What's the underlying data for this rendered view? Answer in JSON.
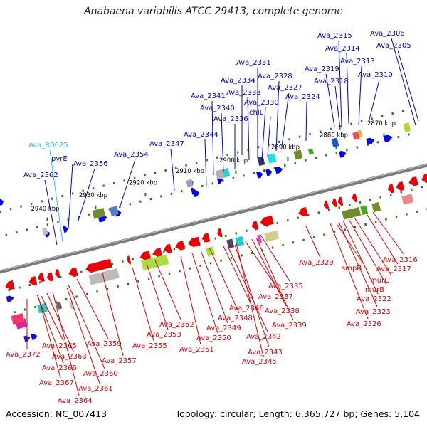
{
  "title": "Anabaena variabilis ATCC 29413, complete genome",
  "footer": {
    "accession": "Accession: NC_007413",
    "stats": "Topology: circular; Length: 6,365,727 bp; Genes: 5,104"
  },
  "colors": {
    "backbone": "#7a7a7a",
    "ticks": "#1f7a1f",
    "forward_label": "#0000cc",
    "reverse_label": "#dd0000",
    "rna_label": "#33bbee"
  },
  "scale_ticks": [
    "2940 kbp",
    "2930 kbp",
    "2920 kbp",
    "2910 kbp",
    "2900 kbp",
    "2890 kbp",
    "2880 kbp",
    "2870 kbp"
  ],
  "top_labels": [
    {
      "text": "Ava_2362",
      "kind": "forward"
    },
    {
      "text": "Ava_R0025",
      "kind": "rna"
    },
    {
      "text": "pyrE",
      "kind": "forward"
    },
    {
      "text": "Ava_2356",
      "kind": "forward"
    },
    {
      "text": "Ava_2354",
      "kind": "forward"
    },
    {
      "text": "Ava_2347",
      "kind": "forward"
    },
    {
      "text": "Ava_2344",
      "kind": "forward"
    },
    {
      "text": "Ava_2341",
      "kind": "forward"
    },
    {
      "text": "Ava_2340",
      "kind": "forward"
    },
    {
      "text": "Ava_2336",
      "kind": "forward"
    },
    {
      "text": "Ava_2334",
      "kind": "forward"
    },
    {
      "text": "Ava_2333",
      "kind": "forward"
    },
    {
      "text": "Ava_2331",
      "kind": "forward"
    },
    {
      "text": "Ava_2330",
      "kind": "forward"
    },
    {
      "text": "chlL",
      "kind": "forward"
    },
    {
      "text": "Ava_2328",
      "kind": "forward"
    },
    {
      "text": "Ava_2327",
      "kind": "forward"
    },
    {
      "text": "Ava_2324",
      "kind": "forward"
    },
    {
      "text": "Ava_2319",
      "kind": "forward"
    },
    {
      "text": "Ava_2318",
      "kind": "forward"
    },
    {
      "text": "Ava_2315",
      "kind": "forward"
    },
    {
      "text": "Ava_2314",
      "kind": "forward"
    },
    {
      "text": "Ava_2313",
      "kind": "forward"
    },
    {
      "text": "Ava_2310",
      "kind": "forward"
    },
    {
      "text": "Ava_2306",
      "kind": "forward"
    },
    {
      "text": "Ava_2305",
      "kind": "forward"
    }
  ],
  "bottom_labels": [
    {
      "text": "Ava_2372"
    },
    {
      "text": "Ava_2365"
    },
    {
      "text": "Ava_2363"
    },
    {
      "text": "Ava_2366"
    },
    {
      "text": "Ava_2367"
    },
    {
      "text": "Ava_2364"
    },
    {
      "text": "Ava_2361"
    },
    {
      "text": "Ava_2360"
    },
    {
      "text": "Ava_2359"
    },
    {
      "text": "Ava_2357"
    },
    {
      "text": "Ava_2355"
    },
    {
      "text": "Ava_2353"
    },
    {
      "text": "Ava_2352"
    },
    {
      "text": "Ava_2351"
    },
    {
      "text": "Ava_2350"
    },
    {
      "text": "Ava_2349"
    },
    {
      "text": "Ava_2348"
    },
    {
      "text": "Ava_2346"
    },
    {
      "text": "Ava_2342"
    },
    {
      "text": "Ava_2343"
    },
    {
      "text": "Ava_2345"
    },
    {
      "text": "Ava_2339"
    },
    {
      "text": "Ava_2338"
    },
    {
      "text": "Ava_2337"
    },
    {
      "text": "Ava_2335"
    },
    {
      "text": "Ava_2329"
    },
    {
      "text": "smpB"
    },
    {
      "text": "murC"
    },
    {
      "text": "murB"
    },
    {
      "text": "Ava_2322"
    },
    {
      "text": "Ava_2323"
    },
    {
      "text": "Ava_2326"
    },
    {
      "text": "Ava_2317"
    },
    {
      "text": "Ava_2316"
    }
  ]
}
